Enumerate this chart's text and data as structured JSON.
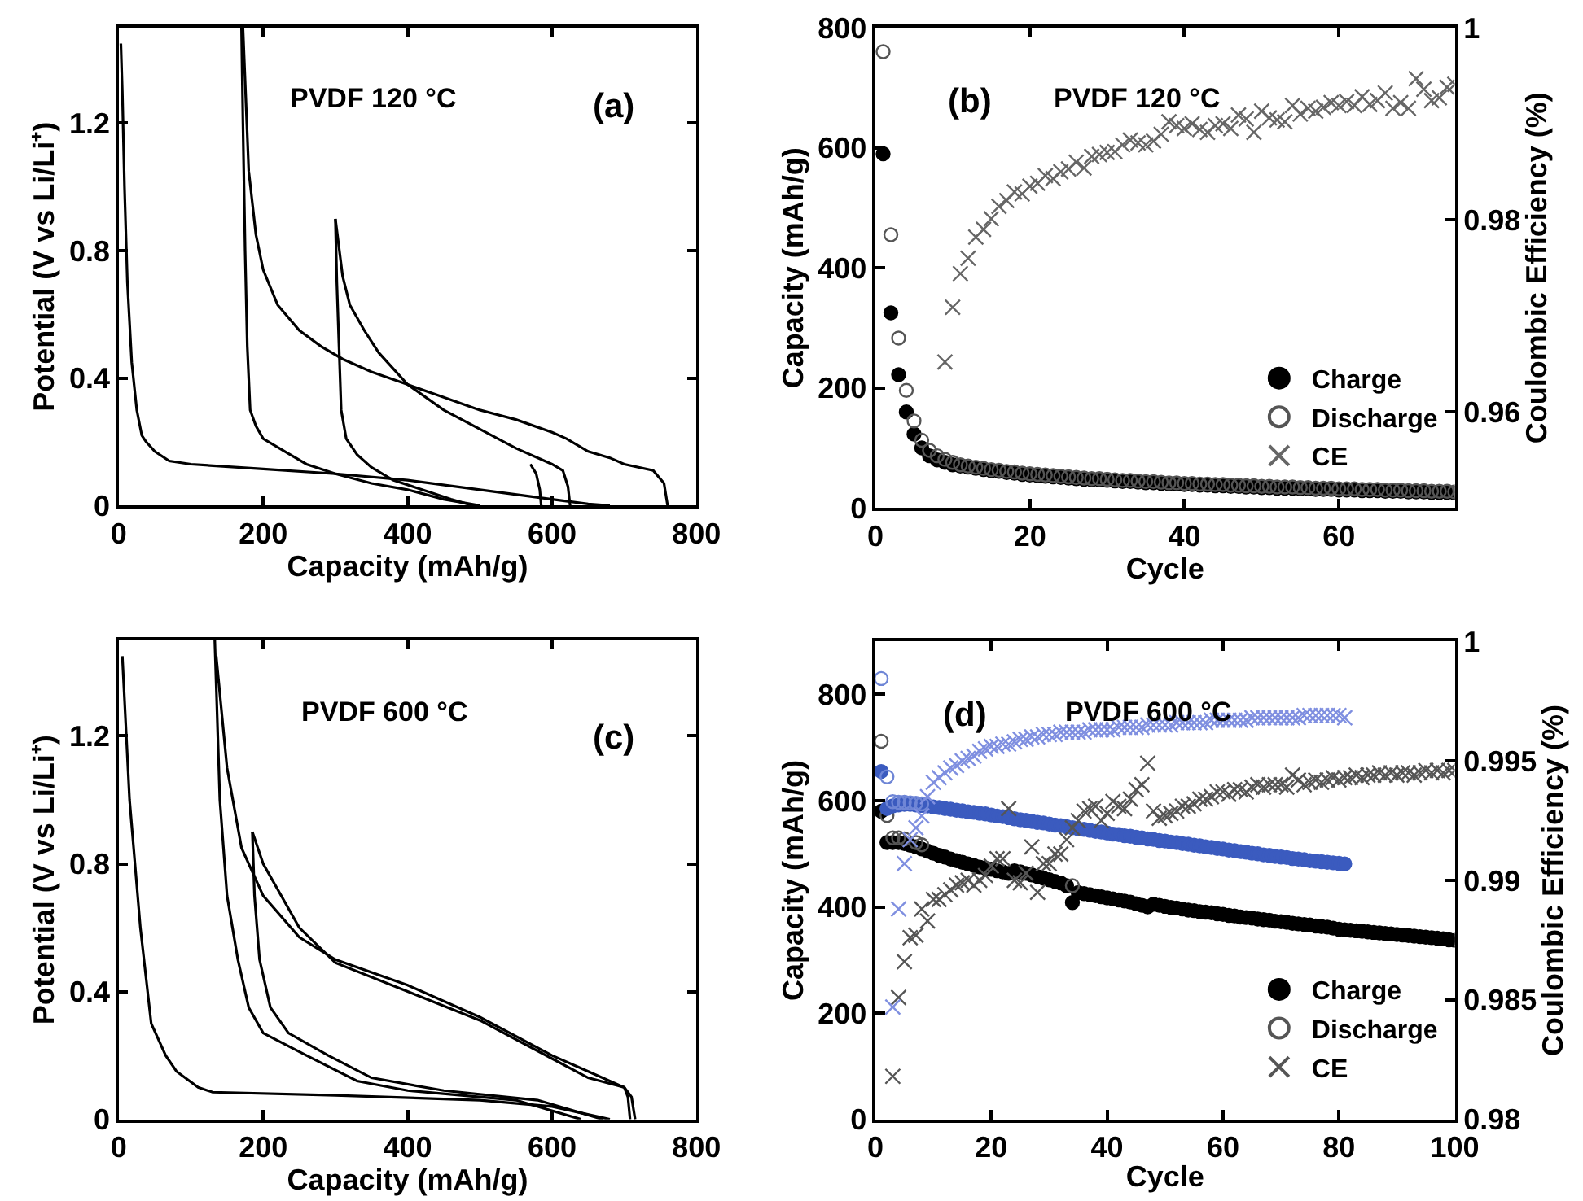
{
  "chart_data": [
    {
      "type": "line",
      "title": "PVDF 120 °C",
      "annotations": [
        "(a)"
      ],
      "xlabel": "Capacity (mAh/g)",
      "ylabel": "Potential (V vs Li/Li⁺)",
      "xlim": [
        0,
        800
      ],
      "ylim": [
        0,
        1.5
      ],
      "xticks": [
        0,
        200,
        400,
        600,
        800
      ],
      "yticks": [
        0,
        0.4,
        0.8,
        1.2
      ],
      "grid": false,
      "legend": false,
      "marker": "none",
      "line_style": "solid",
      "series": [
        {
          "color": "#000000",
          "x": [
            3,
            5,
            8,
            12,
            18,
            25,
            32,
            38,
            50,
            70,
            100,
            200,
            300,
            400,
            500,
            600,
            650,
            680
          ],
          "values": [
            1.45,
            1.3,
            1.0,
            0.7,
            0.45,
            0.3,
            0.22,
            0.2,
            0.17,
            0.14,
            0.13,
            0.115,
            0.1,
            0.08,
            0.05,
            0.02,
            0.005,
            0
          ]
        },
        {
          "color": "#000000",
          "x": [
            170,
            172,
            175,
            178,
            182,
            190,
            200,
            230,
            260,
            300,
            350,
            400,
            450,
            500
          ],
          "values": [
            1.5,
            1.2,
            0.8,
            0.5,
            0.3,
            0.25,
            0.21,
            0.17,
            0.13,
            0.1,
            0.07,
            0.05,
            0.02,
            0
          ]
        },
        {
          "color": "#000000",
          "x": [
            300,
            302,
            305,
            308,
            315,
            330,
            350,
            380,
            420,
            460,
            490
          ],
          "values": [
            0.9,
            0.7,
            0.5,
            0.3,
            0.21,
            0.16,
            0.12,
            0.08,
            0.05,
            0.02,
            0
          ]
        },
        {
          "color": "#000000",
          "x": [
            172,
            180,
            190,
            200,
            220,
            250,
            280,
            310,
            350,
            400,
            450,
            500,
            550,
            600,
            620,
            650,
            680,
            700,
            740,
            755,
            760
          ],
          "values": [
            1.5,
            1.05,
            0.85,
            0.74,
            0.63,
            0.55,
            0.5,
            0.46,
            0.42,
            0.38,
            0.34,
            0.3,
            0.27,
            0.23,
            0.21,
            0.17,
            0.15,
            0.13,
            0.11,
            0.07,
            0
          ]
        },
        {
          "color": "#000000",
          "x": [
            300,
            310,
            320,
            340,
            360,
            400,
            450,
            500,
            550,
            600,
            615,
            622,
            625
          ],
          "values": [
            0.9,
            0.72,
            0.63,
            0.55,
            0.48,
            0.38,
            0.3,
            0.24,
            0.18,
            0.13,
            0.11,
            0.06,
            0
          ]
        },
        {
          "color": "#000000",
          "x": [
            570,
            578,
            583,
            585
          ],
          "values": [
            0.13,
            0.1,
            0.05,
            0
          ]
        }
      ]
    },
    {
      "type": "scatter",
      "title": "PVDF 120 °C",
      "annotations": [
        "(b)"
      ],
      "xlabel": "Cycle",
      "ylabel": "Capacity (mAh/g)",
      "y2label": "Coulombic Efficiency (%)",
      "xlim": [
        0,
        75
      ],
      "ylim": [
        0,
        800
      ],
      "y2lim": [
        0.95,
        1
      ],
      "xticks": [
        0,
        20,
        40,
        60
      ],
      "yticks": [
        0,
        200,
        400,
        600,
        800
      ],
      "y2ticks": [
        0.96,
        0.98,
        1
      ],
      "grid": false,
      "legend": "bottom right",
      "x": [
        1,
        2,
        3,
        4,
        5,
        6,
        7,
        8,
        9,
        10,
        11,
        12,
        13,
        14,
        15,
        16,
        17,
        18,
        19,
        20,
        21,
        22,
        23,
        24,
        25,
        26,
        27,
        28,
        29,
        30,
        31,
        32,
        33,
        34,
        35,
        36,
        37,
        38,
        39,
        40,
        41,
        42,
        43,
        44,
        45,
        46,
        47,
        48,
        49,
        50,
        51,
        52,
        53,
        54,
        55,
        56,
        57,
        58,
        59,
        60,
        61,
        62,
        63,
        64,
        65,
        66,
        67,
        68,
        69,
        70,
        71,
        72,
        73,
        74,
        75
      ],
      "series": [
        {
          "name": "Charge",
          "color": "#000000",
          "marker": "circle",
          "values": [
            590,
            325,
            222,
            160,
            123,
            100,
            87,
            80,
            76,
            72,
            70,
            68,
            66,
            64,
            62,
            61,
            59,
            58,
            56,
            55,
            54,
            53,
            52,
            51,
            50,
            49,
            48,
            47,
            47,
            46,
            45,
            44,
            44,
            43,
            42,
            42,
            41,
            40,
            40,
            39,
            39,
            38,
            38,
            37,
            37,
            36,
            36,
            35,
            35,
            34,
            34,
            33,
            33,
            33,
            32,
            32,
            31,
            31,
            31,
            30,
            30,
            30,
            29,
            29,
            29,
            28,
            28,
            28,
            27,
            27,
            27,
            26,
            26,
            26,
            25
          ]
        },
        {
          "name": "Discharge",
          "color": "#555555",
          "marker": "circle-open",
          "values": [
            760,
            455,
            283,
            196,
            145,
            113,
            96,
            87,
            81,
            76,
            72,
            70,
            68,
            66,
            64,
            63,
            61,
            60,
            58,
            57,
            56,
            55,
            54,
            53,
            52,
            51,
            50,
            49,
            49,
            48,
            47,
            46,
            46,
            45,
            44,
            44,
            43,
            42,
            42,
            41,
            41,
            40,
            40,
            39,
            39,
            38,
            38,
            37,
            37,
            36,
            36,
            35,
            35,
            35,
            34,
            34,
            33,
            33,
            33,
            32,
            32,
            32,
            31,
            31,
            31,
            30,
            30,
            30,
            29,
            29,
            29,
            28,
            28,
            28,
            27
          ]
        },
        {
          "name": "CE",
          "color": "#666666",
          "marker": "cross",
          "axis": "y2",
          "values": [
            null,
            null,
            null,
            null,
            null,
            null,
            null,
            null,
            0.9652,
            0.9709,
            0.9744,
            0.976,
            0.9782,
            0.979,
            0.9801,
            0.9814,
            0.982,
            0.9829,
            0.9827,
            0.9835,
            0.9838,
            0.9846,
            0.9843,
            0.985,
            0.9853,
            0.986,
            0.9854,
            0.9866,
            0.9868,
            0.987,
            0.9871,
            0.9878,
            0.9883,
            0.988,
            0.9878,
            0.9882,
            0.9889,
            0.9902,
            0.9898,
            0.9895,
            0.99,
            0.9894,
            0.9891,
            0.9898,
            0.99,
            0.9895,
            0.9909,
            0.9905,
            0.9891,
            0.9913,
            0.9906,
            0.9904,
            0.9902,
            0.9919,
            0.991,
            0.9916,
            0.9913,
            0.9917,
            0.9922,
            0.9919,
            0.9923,
            0.9919,
            0.9928,
            0.992,
            0.9924,
            0.9932,
            0.9916,
            0.9922,
            0.9916,
            0.9947,
            0.9936,
            0.9924,
            0.9927,
            0.9938,
            0.9941
          ]
        }
      ]
    },
    {
      "type": "line",
      "title": "PVDF 600 °C",
      "annotations": [
        "(c)"
      ],
      "xlabel": "Capacity (mAh/g)",
      "ylabel": "Potential (V vs Li/Li⁺)",
      "xlim": [
        0,
        800
      ],
      "ylim": [
        0,
        1.5
      ],
      "xticks": [
        0,
        200,
        400,
        600,
        800
      ],
      "yticks": [
        0,
        0.4,
        0.8,
        1.2
      ],
      "grid": false,
      "legend": false,
      "marker": "none",
      "line_style": "solid",
      "series": [
        {
          "color": "#000000",
          "x": [
            5,
            15,
            30,
            45,
            65,
            80,
            110,
            130,
            300,
            500,
            600,
            680
          ],
          "values": [
            1.45,
            1.0,
            0.6,
            0.3,
            0.2,
            0.15,
            0.1,
            0.085,
            0.075,
            0.06,
            0.04,
            0
          ]
        },
        {
          "color": "#000000",
          "x": [
            133,
            140,
            150,
            165,
            180,
            200,
            260,
            330,
            400,
            550,
            640
          ],
          "values": [
            1.5,
            1.0,
            0.7,
            0.5,
            0.35,
            0.27,
            0.2,
            0.12,
            0.09,
            0.06,
            0
          ]
        },
        {
          "color": "#000000",
          "x": [
            185,
            188,
            195,
            210,
            235,
            290,
            350,
            450,
            580,
            670
          ],
          "values": [
            0.9,
            0.7,
            0.5,
            0.35,
            0.27,
            0.2,
            0.13,
            0.09,
            0.06,
            0
          ]
        },
        {
          "color": "#000000",
          "x": [
            135,
            150,
            170,
            200,
            250,
            300,
            400,
            500,
            600,
            650,
            700,
            710,
            715
          ],
          "values": [
            1.45,
            1.1,
            0.85,
            0.7,
            0.57,
            0.5,
            0.42,
            0.32,
            0.2,
            0.15,
            0.1,
            0.07,
            0
          ]
        },
        {
          "color": "#000000",
          "x": [
            185,
            200,
            250,
            300,
            400,
            500,
            600,
            650,
            700,
            705,
            708
          ],
          "values": [
            0.9,
            0.8,
            0.6,
            0.49,
            0.4,
            0.31,
            0.19,
            0.13,
            0.1,
            0.07,
            0
          ]
        }
      ]
    },
    {
      "type": "scatter",
      "title": "PVDF 600 °C",
      "annotations": [
        "(d)"
      ],
      "xlabel": "Cycle",
      "ylabel": "Capacity (mAh/g)",
      "y2label": "Coulombic Efficiency (%)",
      "xlim": [
        0,
        100
      ],
      "ylim": [
        0,
        900
      ],
      "y2lim": [
        0.98,
        1
      ],
      "xticks": [
        0,
        20,
        40,
        60,
        80,
        100
      ],
      "yticks": [
        0,
        200,
        400,
        600,
        800
      ],
      "y2ticks": [
        0.98,
        0.985,
        0.99,
        0.995,
        1
      ],
      "grid": false,
      "legend": "bottom right",
      "x": [
        1,
        2,
        3,
        4,
        5,
        6,
        7,
        8,
        9,
        10,
        11,
        12,
        13,
        14,
        15,
        16,
        17,
        18,
        19,
        20,
        21,
        22,
        23,
        24,
        25,
        26,
        27,
        28,
        29,
        30,
        31,
        32,
        33,
        34,
        35,
        36,
        37,
        38,
        39,
        40,
        41,
        42,
        43,
        44,
        45,
        46,
        47,
        48,
        49,
        50,
        51,
        52,
        53,
        54,
        55,
        56,
        57,
        58,
        59,
        60,
        61,
        62,
        63,
        64,
        65,
        66,
        67,
        68,
        69,
        70,
        71,
        72,
        73,
        74,
        75,
        76,
        77,
        78,
        79,
        80,
        81,
        82,
        83,
        84,
        85,
        86,
        87,
        88,
        89,
        90,
        91,
        92,
        93,
        94,
        95,
        96,
        97,
        98,
        99,
        100
      ],
      "series": [
        {
          "name": "Charge",
          "color": "#000000",
          "marker": "circle",
          "values": [
            580,
            521,
            521,
            521,
            519,
            516,
            513,
            509,
            505,
            501,
            497,
            494,
            490,
            487,
            484,
            481,
            478,
            475,
            473,
            471,
            468,
            466,
            463,
            468,
            466,
            463,
            460,
            457,
            454,
            451,
            448,
            445,
            440,
            408,
            427,
            425,
            423,
            421,
            419,
            417,
            415,
            413,
            411,
            409,
            406,
            403,
            400,
            405,
            403,
            401,
            399,
            398,
            396,
            394,
            393,
            391,
            390,
            389,
            387,
            386,
            384,
            383,
            381,
            380,
            379,
            377,
            376,
            375,
            373,
            372,
            371,
            369,
            368,
            367,
            366,
            364,
            363,
            362,
            360,
            358,
            357,
            356,
            355,
            354,
            353,
            352,
            351,
            350,
            349,
            348,
            347,
            346,
            345,
            344,
            343,
            342,
            341,
            340,
            338,
            337
          ]
        },
        {
          "name": "Discharge",
          "color": "#555555",
          "marker": "circle-open",
          "x": [
            1,
            2,
            3,
            4,
            5,
            6,
            7,
            8,
            34
          ],
          "values": [
            712,
            572,
            530,
            530,
            528,
            null,
            521,
            517,
            440
          ]
        },
        {
          "name": "CE",
          "color": "#555555",
          "marker": "cross",
          "axis": "y2",
          "values": [
            null,
            null,
            0.9818,
            0.9851,
            0.9866,
            0.9876,
            0.9877,
            0.9888,
            0.9883,
            0.9892,
            0.9892,
            0.9894,
            0.9896,
            0.9898,
            0.9899,
            0.99,
            0.9898,
            0.99,
            0.9902,
            0.9906,
            0.9909,
            0.9909,
            0.993,
            0.99,
            0.9899,
            0.9903,
            0.9914,
            0.9895,
            0.9907,
            0.9907,
            0.9911,
            0.9911,
            0.9917,
            0.9922,
            0.9925,
            0.9929,
            0.993,
            0.9931,
            0.9925,
            0.9928,
            0.9933,
            0.9931,
            0.993,
            0.9934,
            0.9938,
            0.994,
            0.9949,
            0.9929,
            0.9926,
            0.9927,
            0.9928,
            0.9929,
            0.9931,
            0.9931,
            0.9932,
            0.9934,
            0.9934,
            0.9935,
            0.9937,
            0.9937,
            0.9936,
            0.9938,
            0.9938,
            0.9937,
            0.9939,
            0.994,
            0.9939,
            0.994,
            0.994,
            0.994,
            0.9939,
            0.9944,
            0.9942,
            0.994,
            0.9941,
            0.9942,
            0.9941,
            0.9942,
            0.9943,
            0.9942,
            0.9943,
            0.9943,
            0.9944,
            0.9943,
            0.9944,
            0.9944,
            0.9945,
            0.9944,
            0.9945,
            0.9944,
            0.9945,
            0.9945,
            0.9944,
            0.9945,
            0.9946,
            0.9945,
            0.9946,
            0.9945,
            0.9946,
            0.9946
          ]
        },
        {
          "color": "#3b5bbf",
          "marker": "circle",
          "x": [
            1,
            2,
            3,
            4,
            5,
            6,
            7,
            8,
            9,
            10,
            11,
            12,
            13,
            14,
            15,
            16,
            17,
            18,
            19,
            20,
            21,
            22,
            23,
            24,
            25,
            26,
            27,
            28,
            29,
            30,
            31,
            32,
            33,
            34,
            35,
            36,
            37,
            38,
            39,
            40,
            41,
            42,
            43,
            44,
            45,
            46,
            47,
            48,
            49,
            50,
            51,
            52,
            53,
            54,
            55,
            56,
            57,
            58,
            59,
            60,
            61,
            62,
            63,
            64,
            65,
            66,
            67,
            68,
            69,
            70,
            71,
            72,
            73,
            74,
            75,
            76,
            77,
            78,
            79,
            80,
            81
          ],
          "values": [
            655,
            585,
            590,
            592,
            593,
            593,
            592,
            591,
            590,
            588,
            587,
            585,
            584,
            582,
            581,
            579,
            578,
            576,
            575,
            573,
            571,
            570,
            568,
            566,
            564,
            563,
            561,
            559,
            558,
            556,
            554,
            553,
            551,
            549,
            547,
            546,
            544,
            542,
            541,
            539,
            537,
            536,
            534,
            533,
            531,
            530,
            528,
            527,
            525,
            524,
            522,
            521,
            519,
            518,
            516,
            515,
            513,
            512,
            510,
            509,
            507,
            506,
            504,
            503,
            501,
            500,
            498,
            497,
            495,
            494,
            493,
            491,
            490,
            489,
            487,
            486,
            485,
            484,
            483,
            482,
            481
          ]
        },
        {
          "color": "#6f86d6",
          "marker": "circle-open",
          "x": [
            1,
            2,
            3,
            4,
            5,
            6,
            7,
            8
          ],
          "values": [
            830,
            645,
            598,
            597,
            597,
            596,
            595,
            594
          ]
        },
        {
          "color": "#7f8fe0",
          "marker": "cross",
          "axis": "y2",
          "x": [
            3,
            4,
            5,
            6,
            7,
            8,
            9,
            10,
            11,
            12,
            13,
            14,
            15,
            16,
            17,
            18,
            19,
            20,
            21,
            22,
            23,
            24,
            25,
            26,
            27,
            28,
            29,
            30,
            31,
            32,
            33,
            34,
            35,
            36,
            37,
            38,
            39,
            40,
            41,
            42,
            43,
            44,
            45,
            46,
            47,
            48,
            49,
            50,
            51,
            52,
            53,
            54,
            55,
            56,
            57,
            58,
            59,
            60,
            61,
            62,
            63,
            64,
            65,
            66,
            67,
            68,
            69,
            70,
            71,
            72,
            73,
            74,
            75,
            76,
            77,
            78,
            79,
            80,
            81
          ],
          "values": [
            0.9847,
            0.9888,
            0.9907,
            0.9917,
            0.9922,
            0.9927,
            0.9935,
            0.9941,
            0.9943,
            0.9945,
            0.9947,
            0.9948,
            0.995,
            0.9951,
            0.9952,
            0.9954,
            0.9955,
            0.9956,
            0.9956,
            0.9957,
            0.9957,
            0.9958,
            0.9959,
            0.9959,
            0.996,
            0.996,
            0.9961,
            0.9961,
            0.9961,
            0.9962,
            0.9962,
            0.9962,
            0.9962,
            0.9962,
            0.9963,
            0.9963,
            0.9963,
            0.9963,
            0.9963,
            0.9964,
            0.9964,
            0.9964,
            0.9964,
            0.9964,
            0.9965,
            0.9965,
            0.9965,
            0.9965,
            0.9965,
            0.9966,
            0.9966,
            0.9966,
            0.9966,
            0.9966,
            0.9966,
            0.9967,
            0.9967,
            0.9967,
            0.9967,
            0.9967,
            0.9967,
            0.9967,
            0.9968,
            0.9968,
            0.9968,
            0.9968,
            0.9968,
            0.9968,
            0.9968,
            0.9968,
            0.9968,
            0.9969,
            0.9969,
            0.9969,
            0.9969,
            0.9969,
            0.9969,
            0.9969,
            0.9968
          ]
        }
      ]
    }
  ]
}
